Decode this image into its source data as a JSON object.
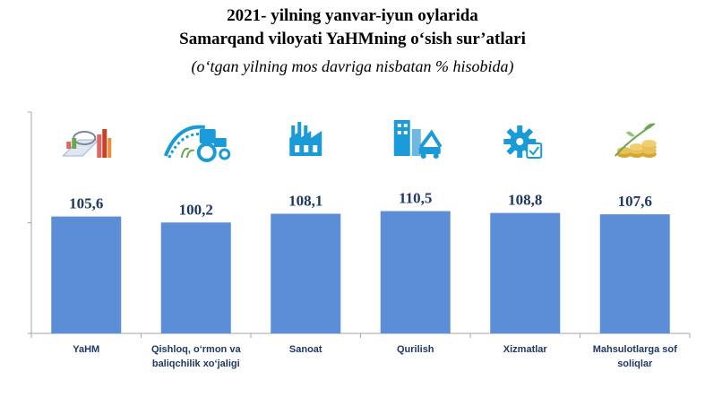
{
  "title_lines": [
    "2021- yilning yanvar-iyun oylarida",
    "Samarqand viloyati YaHMning o‘sish sur’atlari"
  ],
  "subtitle": "(o‘tgan yilning mos davriga nisbatan % hisobida)",
  "colors": {
    "bar": "#5b8ed6",
    "value_text": "#1f3864",
    "axis": "#a6a6a6",
    "icon_blue": "#1a9ad6"
  },
  "chart_data": {
    "type": "bar",
    "title": "2021- yilning yanvar-iyun oylarida Samarqand viloyati YaHMning o‘sish sur’atlari",
    "subtitle": "(o‘tgan yilning mos davriga nisbatan % hisobida)",
    "categories": [
      [
        "YaHM"
      ],
      [
        "Qishloq, o‘rmon va",
        "baliqchilik xo‘jaligi"
      ],
      [
        "Sanoat"
      ],
      [
        "Qurilish"
      ],
      [
        "Xizmatlar"
      ],
      [
        "Mahsulotlarga sof",
        "soliqlar"
      ]
    ],
    "values": [
      105.6,
      100.2,
      108.1,
      110.5,
      108.8,
      107.6
    ],
    "value_labels": [
      "105,6",
      "100,2",
      "108,1",
      "110,5",
      "108,8",
      "107,6"
    ],
    "icons": [
      "chart-report-icon",
      "tractor-icon",
      "factory-icon",
      "construction-icon",
      "services-gear-icon",
      "money-growth-icon"
    ],
    "xlabel": "",
    "ylabel": "",
    "ylim": [
      0,
      200
    ],
    "grid": false,
    "legend": "none"
  }
}
